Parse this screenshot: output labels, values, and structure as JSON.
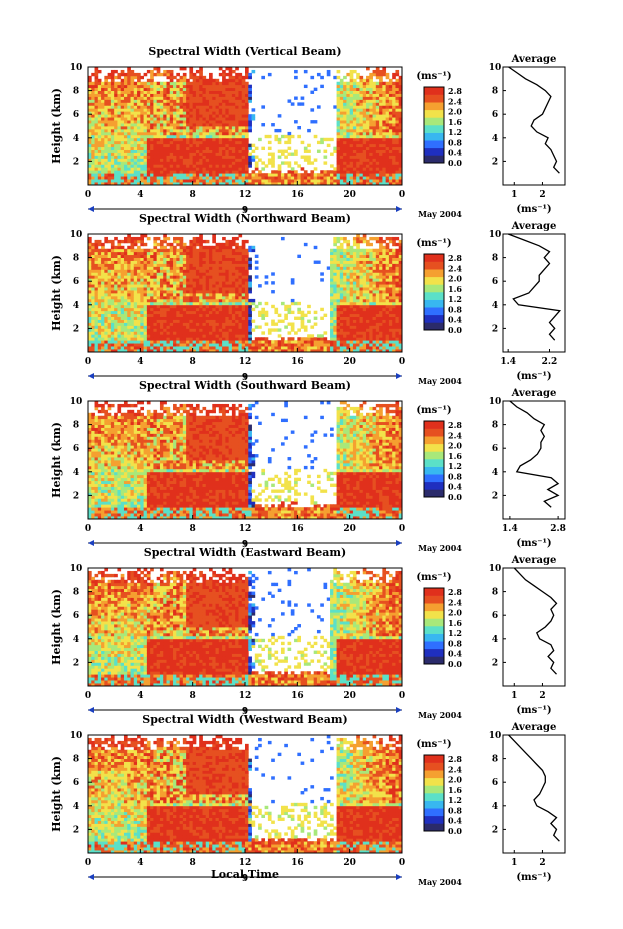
{
  "date_label": "May 2004",
  "xlabel_bottom": "Local Time",
  "panels": [
    {
      "title": "Spectral Width (Vertical Beam)"
    },
    {
      "title": "Spectral Width (Northward Beam)"
    },
    {
      "title": "Spectral Width (Southward Beam)"
    },
    {
      "title": "Spectral Width (Eastward Beam)"
    },
    {
      "title": "Spectral Width (Westward Beam)"
    }
  ],
  "colorbar": {
    "unit_label": "(ms⁻¹)",
    "ticks": [
      "2.8",
      "2.4",
      "2.0",
      "1.6",
      "1.2",
      "0.8",
      "0.4",
      "0.0"
    ],
    "colors": [
      "#2b2b6b",
      "#1f2fbf",
      "#2f6fff",
      "#38b7f0",
      "#5be0c8",
      "#a8e87a",
      "#f2e24a",
      "#f5a030",
      "#e65020",
      "#e0301c"
    ]
  },
  "chart_data": [
    {
      "type": "heatmap",
      "title": "Spectral Width (Vertical Beam)",
      "ylabel": "Height (km)",
      "xlim": [
        0,
        24
      ],
      "ylim": [
        0,
        10
      ],
      "xticks": [
        "0",
        "4",
        "8",
        "12",
        "16",
        "20",
        "0"
      ],
      "yticks": [
        "2",
        "4",
        "6",
        "8",
        "10"
      ],
      "day_marker": "9",
      "profile": {
        "title": "Average",
        "xlabel": "(ms⁻¹)",
        "xticks": [
          "1",
          "2"
        ],
        "xlim": [
          0.6,
          2.8
        ],
        "height": [
          1,
          1.5,
          2,
          2.5,
          3,
          3.5,
          4,
          4.5,
          5,
          5.5,
          6,
          6.5,
          7,
          7.5,
          8,
          8.5,
          9,
          9.5,
          10
        ],
        "value": [
          2.6,
          2.4,
          2.5,
          2.4,
          2.3,
          2.1,
          2.2,
          1.8,
          1.6,
          1.7,
          2.0,
          2.1,
          2.2,
          2.3,
          2.1,
          1.8,
          1.4,
          1.1,
          0.8
        ]
      }
    },
    {
      "type": "heatmap",
      "title": "Spectral Width (Northward Beam)",
      "ylabel": "Height (km)",
      "xlim": [
        0,
        24
      ],
      "ylim": [
        0,
        10
      ],
      "xticks": [
        "0",
        "4",
        "8",
        "12",
        "16",
        "20",
        "0"
      ],
      "yticks": [
        "2",
        "4",
        "6",
        "8",
        "10"
      ],
      "day_marker": "9",
      "profile": {
        "title": "Average",
        "xlabel": "(ms⁻¹)",
        "xticks": [
          "1.4",
          "2.2"
        ],
        "xlim": [
          1.3,
          2.5
        ],
        "height": [
          1,
          1.5,
          2,
          2.5,
          3,
          3.5,
          4,
          4.5,
          5,
          5.5,
          6,
          6.5,
          7,
          7.5,
          8,
          8.5,
          9,
          9.5,
          10
        ],
        "value": [
          2.3,
          2.2,
          2.3,
          2.2,
          2.3,
          2.4,
          1.6,
          1.5,
          1.8,
          1.9,
          2.0,
          2.0,
          2.1,
          2.2,
          2.1,
          2.2,
          2.0,
          1.7,
          1.4
        ]
      }
    },
    {
      "type": "heatmap",
      "title": "Spectral Width (Southward Beam)",
      "ylabel": "Height (km)",
      "xlim": [
        0,
        24
      ],
      "ylim": [
        0,
        10
      ],
      "xticks": [
        "0",
        "4",
        "8",
        "12",
        "16",
        "20",
        "0"
      ],
      "yticks": [
        "2",
        "4",
        "6",
        "8",
        "10"
      ],
      "day_marker": "9",
      "profile": {
        "title": "Average",
        "xlabel": "(ms⁻¹)",
        "xticks": [
          "1.4",
          "2.8"
        ],
        "xlim": [
          1.2,
          3.0
        ],
        "height": [
          1,
          1.5,
          2,
          2.5,
          3,
          3.5,
          4,
          4.5,
          5,
          5.5,
          6,
          6.5,
          7,
          7.5,
          8,
          8.5,
          9,
          9.5,
          10
        ],
        "value": [
          2.6,
          2.4,
          2.8,
          2.5,
          2.8,
          2.6,
          1.6,
          1.7,
          2.0,
          2.2,
          2.3,
          2.3,
          2.4,
          2.3,
          2.4,
          2.1,
          1.9,
          1.6,
          1.4
        ]
      }
    },
    {
      "type": "heatmap",
      "title": "Spectral Width (Eastward Beam)",
      "ylabel": "Height (km)",
      "xlim": [
        0,
        24
      ],
      "ylim": [
        0,
        10
      ],
      "xticks": [
        "0",
        "4",
        "8",
        "12",
        "16",
        "20",
        "0"
      ],
      "yticks": [
        "2",
        "4",
        "6",
        "8",
        "10"
      ],
      "day_marker": "9",
      "profile": {
        "title": "Average",
        "xlabel": "(ms⁻¹)",
        "xticks": [
          "1",
          "2"
        ],
        "xlim": [
          0.6,
          2.8
        ],
        "height": [
          1,
          1.5,
          2,
          2.5,
          3,
          3.5,
          4,
          4.5,
          5,
          5.5,
          6,
          6.5,
          7,
          7.5,
          8,
          8.5,
          9,
          9.5,
          10
        ],
        "value": [
          2.5,
          2.3,
          2.4,
          2.2,
          2.4,
          2.3,
          1.9,
          1.8,
          2.1,
          2.3,
          2.4,
          2.3,
          2.5,
          2.3,
          2.0,
          1.7,
          1.4,
          1.2,
          1.0
        ]
      }
    },
    {
      "type": "heatmap",
      "title": "Spectral Width (Westward Beam)",
      "ylabel": "Height (km)",
      "xlim": [
        0,
        24
      ],
      "ylim": [
        0,
        10
      ],
      "xticks": [
        "0",
        "4",
        "8",
        "12",
        "16",
        "20",
        "0"
      ],
      "yticks": [
        "2",
        "4",
        "6",
        "8",
        "10"
      ],
      "day_marker": "9",
      "profile": {
        "title": "Average",
        "xlabel": "(ms⁻¹)",
        "xticks": [
          "1",
          "2"
        ],
        "xlim": [
          0.6,
          2.8
        ],
        "height": [
          1,
          1.5,
          2,
          2.5,
          3,
          3.5,
          4,
          4.5,
          5,
          5.5,
          6,
          6.5,
          7,
          7.5,
          8,
          8.5,
          9,
          9.5,
          10
        ],
        "value": [
          2.6,
          2.4,
          2.5,
          2.3,
          2.5,
          2.2,
          1.8,
          1.7,
          1.9,
          2.0,
          2.1,
          2.1,
          2.0,
          1.8,
          1.6,
          1.4,
          1.2,
          1.0,
          0.8
        ]
      }
    }
  ]
}
